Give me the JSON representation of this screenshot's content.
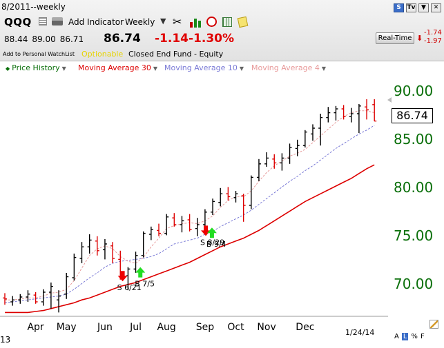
{
  "header": {
    "title_period": "8/2011--weekly",
    "window_icons": [
      "S",
      "Tv",
      "▼",
      "✕"
    ],
    "symbol": "QQQ",
    "toolbar": {
      "add_indicator_label": "Add Indicator",
      "interval_label": "Weekly",
      "icons": [
        "grid-icon",
        "printer-icon",
        "tools-icon",
        "bar-chart-icon",
        "alarm-clock-icon",
        "table-icon",
        "note-icon"
      ]
    },
    "quote": {
      "open": "88.44",
      "high": "89.00",
      "low": "86.71",
      "last": "86.74",
      "change": "-1.14",
      "change_pct": "-1.30%"
    },
    "realtime_label": "Real-Time",
    "realtime_change": "-1.74",
    "realtime_change_pct": "-1.97",
    "watchlist_label": "Add to Personal WatchList",
    "optionable_label": "Optionable",
    "fund_type": "Closed End Fund - Equity"
  },
  "legend": {
    "items": [
      {
        "label": "Price History",
        "color": "#0a6f0a"
      },
      {
        "label": "Moving Average 30",
        "color": "#dd0000"
      },
      {
        "label": "Moving Average 10",
        "color": "#7a7ad6"
      },
      {
        "label": "Moving Average 4",
        "color": "#e89a9a"
      }
    ]
  },
  "chart_data": {
    "type": "line",
    "ylim": [
      66.5,
      91.5
    ],
    "y_ticks": [
      70,
      75,
      80,
      85,
      90
    ],
    "y_tick_labels": [
      "70.00",
      "75.00",
      "80.00",
      "85.00",
      "90.00"
    ],
    "x_tick_labels": [
      "Apr",
      "May",
      "Jun",
      "Jul",
      "Aug",
      "Sep",
      "Oct",
      "Nov",
      "Dec"
    ],
    "x_tick_weeks": [
      4,
      8,
      13,
      17,
      21,
      26,
      30,
      34,
      39
    ],
    "last_price_label": "86.74",
    "date_label": "1/24/14",
    "left_label": "13",
    "scale_options": [
      "A",
      "L",
      "%",
      "F"
    ],
    "colors": {
      "up": "#000000",
      "down": "#dd0000",
      "axis_text": "#0a6f0a"
    },
    "ohlc": [
      [
        68.4,
        68.9,
        67.7,
        68.3
      ],
      [
        68.0,
        68.6,
        67.6,
        68.2
      ],
      [
        68.2,
        68.8,
        67.8,
        68.5
      ],
      [
        68.5,
        69.2,
        68.0,
        68.8
      ],
      [
        68.7,
        69.0,
        67.8,
        68.0
      ],
      [
        68.0,
        69.3,
        67.6,
        69.0
      ],
      [
        69.0,
        70.0,
        67.3,
        69.6
      ],
      [
        68.2,
        69.2,
        66.9,
        68.6
      ],
      [
        68.8,
        71.0,
        68.3,
        70.6
      ],
      [
        70.5,
        73.0,
        70.2,
        72.6
      ],
      [
        72.5,
        74.2,
        72.0,
        73.7
      ],
      [
        73.7,
        75.0,
        73.0,
        74.4
      ],
      [
        74.3,
        74.8,
        72.8,
        73.3
      ],
      [
        73.4,
        74.5,
        72.4,
        74.0
      ],
      [
        73.8,
        74.2,
        72.0,
        72.5
      ],
      [
        72.4,
        73.3,
        70.3,
        70.9
      ],
      [
        70.7,
        71.6,
        69.2,
        71.4
      ],
      [
        71.4,
        73.2,
        71.0,
        72.8
      ],
      [
        72.8,
        75.3,
        72.6,
        75.1
      ],
      [
        75.0,
        75.8,
        74.4,
        75.5
      ],
      [
        75.4,
        76.1,
        74.8,
        75.1
      ],
      [
        75.1,
        77.1,
        74.9,
        76.8
      ],
      [
        76.7,
        77.2,
        75.8,
        76.0
      ],
      [
        76.0,
        76.9,
        75.2,
        76.4
      ],
      [
        76.5,
        77.1,
        75.3,
        75.5
      ],
      [
        75.6,
        76.7,
        74.8,
        76.0
      ],
      [
        76.0,
        77.6,
        75.8,
        77.3
      ],
      [
        77.3,
        78.7,
        77.0,
        78.4
      ],
      [
        78.3,
        79.8,
        77.9,
        79.2
      ],
      [
        79.2,
        79.9,
        78.5,
        78.9
      ],
      [
        78.8,
        79.5,
        78.3,
        79.2
      ],
      [
        79.0,
        79.2,
        76.3,
        78.0
      ],
      [
        78.0,
        81.1,
        77.6,
        80.9
      ],
      [
        80.9,
        82.8,
        80.5,
        82.3
      ],
      [
        82.3,
        83.5,
        82.0,
        82.9
      ],
      [
        82.8,
        83.3,
        81.8,
        82.4
      ],
      [
        82.4,
        83.4,
        81.6,
        82.9
      ],
      [
        82.9,
        84.4,
        82.3,
        84.0
      ],
      [
        83.9,
        84.8,
        83.1,
        84.2
      ],
      [
        84.2,
        85.8,
        84.0,
        85.6
      ],
      [
        85.4,
        86.4,
        84.7,
        86.0
      ],
      [
        86.0,
        87.5,
        84.2,
        87.1
      ],
      [
        87.1,
        88.2,
        86.6,
        87.6
      ],
      [
        87.6,
        88.3,
        86.8,
        88.0
      ],
      [
        88.0,
        88.4,
        86.9,
        87.2
      ],
      [
        87.2,
        88.1,
        86.6,
        87.5
      ],
      [
        87.5,
        88.5,
        85.5,
        88.3
      ],
      [
        88.2,
        89.0,
        86.9,
        87.9
      ],
      [
        88.44,
        89.0,
        86.71,
        86.74
      ]
    ],
    "series": [
      {
        "name": "Moving Average 30",
        "color": "#dd0000",
        "values": [
          66.9,
          66.9,
          66.9,
          66.9,
          67.0,
          67.1,
          67.3,
          67.5,
          67.7,
          67.9,
          68.2,
          68.4,
          68.7,
          69.0,
          69.3,
          69.6,
          69.8,
          70.0,
          70.3,
          70.6,
          70.9,
          71.2,
          71.5,
          71.8,
          72.1,
          72.5,
          72.9,
          73.3,
          73.7,
          74.0,
          74.3,
          74.6,
          75.0,
          75.4,
          75.9,
          76.4,
          76.9,
          77.4,
          77.9,
          78.4,
          78.8,
          79.2,
          79.6,
          80.0,
          80.4,
          80.8,
          81.3,
          81.8,
          82.2
        ]
      },
      {
        "name": "Moving Average 10",
        "color": "#7a7ad6",
        "values": [
          67.9,
          68.0,
          68.1,
          68.2,
          68.3,
          68.4,
          68.5,
          68.6,
          68.8,
          69.3,
          69.9,
          70.5,
          71.0,
          71.6,
          72.0,
          72.2,
          72.3,
          72.4,
          72.5,
          72.7,
          73.0,
          73.5,
          74.0,
          74.2,
          74.4,
          74.6,
          75.0,
          75.3,
          75.8,
          76.2,
          76.6,
          77.0,
          77.5,
          78.1,
          78.7,
          79.3,
          79.9,
          80.5,
          81.0,
          81.6,
          82.1,
          82.7,
          83.3,
          83.9,
          84.4,
          84.9,
          85.4,
          85.8,
          86.3
        ]
      },
      {
        "name": "Moving Average 4",
        "color": "#e89a9a",
        "values": [
          68.2,
          68.2,
          68.3,
          68.4,
          68.4,
          68.6,
          68.9,
          69.0,
          69.3,
          70.2,
          71.5,
          72.8,
          73.5,
          73.8,
          73.5,
          72.7,
          72.2,
          72.0,
          72.6,
          73.7,
          74.6,
          75.6,
          75.9,
          76.1,
          76.2,
          76.1,
          76.4,
          76.9,
          77.8,
          78.5,
          78.9,
          78.9,
          79.5,
          80.5,
          81.4,
          82.1,
          82.6,
          83.1,
          83.4,
          83.8,
          84.5,
          85.2,
          85.9,
          86.6,
          87.2,
          87.6,
          87.8,
          87.8,
          87.6
        ]
      }
    ],
    "signals": [
      {
        "type": "sell",
        "week": 15.3,
        "label": "S 6/21",
        "price": 70.2
      },
      {
        "type": "buy",
        "week": 17.6,
        "label": "B 7/5",
        "price": 70.6
      },
      {
        "type": "sell",
        "week": 26.1,
        "label": "S 8/29",
        "price": 74.9
      },
      {
        "type": "buy",
        "week": 26.9,
        "label": "B 9/4",
        "price": 74.7
      }
    ]
  }
}
